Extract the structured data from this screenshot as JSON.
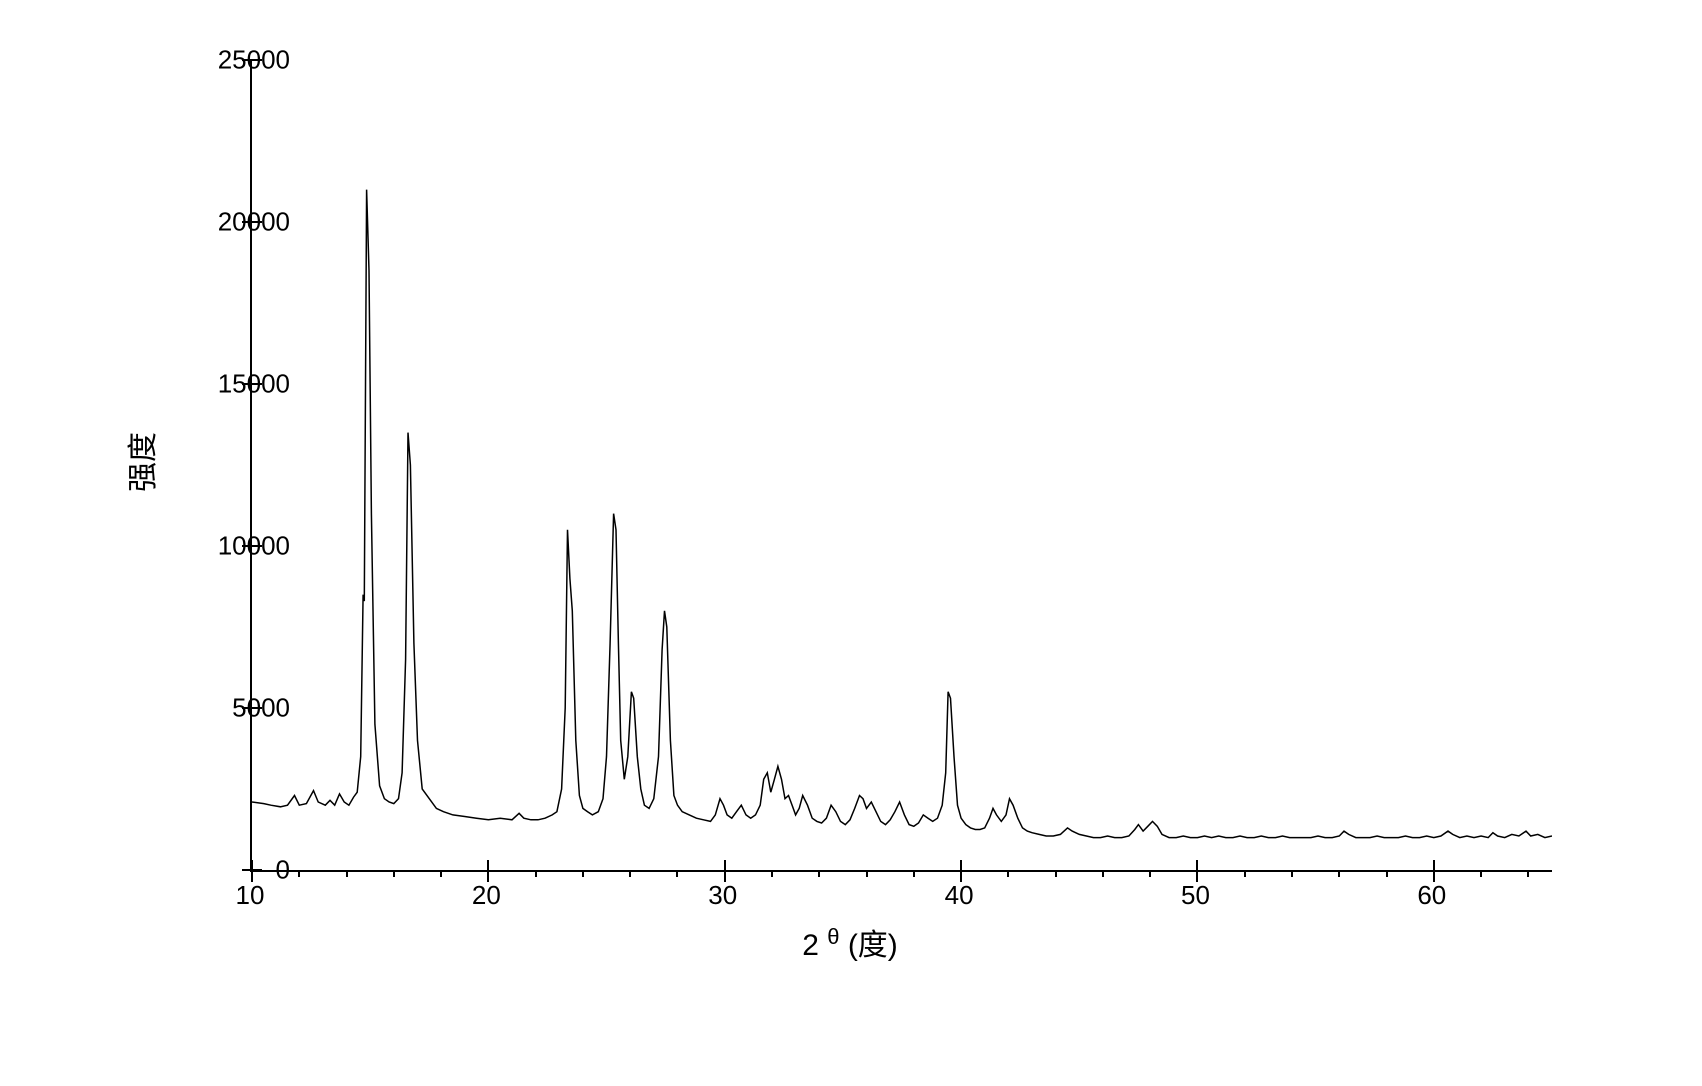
{
  "chart": {
    "type": "line",
    "xlabel_prefix": "2",
    "xlabel_theta": "θ",
    "xlabel_unit": "(度)",
    "ylabel": "强度",
    "xlim": [
      10,
      65
    ],
    "ylim": [
      0,
      25000
    ],
    "xtick_step": 10,
    "xtick_minor_step": 2,
    "ytick_step": 5000,
    "ytick_labels": [
      "0",
      "5000",
      "10000",
      "15000",
      "20000",
      "25000"
    ],
    "xtick_labels": [
      "10",
      "20",
      "30",
      "40",
      "50",
      "60"
    ],
    "line_color": "#000000",
    "line_width": 1.5,
    "background_color": "#ffffff",
    "axis_color": "#000000",
    "font_size_ticks": 26,
    "font_size_labels": 30,
    "data": [
      [
        10.0,
        2100
      ],
      [
        10.5,
        2050
      ],
      [
        10.8,
        2000
      ],
      [
        11.2,
        1950
      ],
      [
        11.5,
        2000
      ],
      [
        11.8,
        2300
      ],
      [
        12.0,
        2000
      ],
      [
        12.3,
        2050
      ],
      [
        12.6,
        2450
      ],
      [
        12.8,
        2100
      ],
      [
        13.1,
        2000
      ],
      [
        13.3,
        2150
      ],
      [
        13.5,
        2000
      ],
      [
        13.7,
        2350
      ],
      [
        13.9,
        2100
      ],
      [
        14.1,
        2000
      ],
      [
        14.3,
        2250
      ],
      [
        14.45,
        2400
      ],
      [
        14.6,
        3500
      ],
      [
        14.7,
        8500
      ],
      [
        14.75,
        8300
      ],
      [
        14.85,
        21000
      ],
      [
        14.95,
        18500
      ],
      [
        15.05,
        11000
      ],
      [
        15.2,
        4500
      ],
      [
        15.4,
        2600
      ],
      [
        15.6,
        2200
      ],
      [
        15.8,
        2100
      ],
      [
        16.0,
        2050
      ],
      [
        16.2,
        2200
      ],
      [
        16.35,
        3000
      ],
      [
        16.5,
        6500
      ],
      [
        16.6,
        13500
      ],
      [
        16.7,
        12500
      ],
      [
        16.85,
        7000
      ],
      [
        17.0,
        4000
      ],
      [
        17.2,
        2500
      ],
      [
        17.5,
        2200
      ],
      [
        17.8,
        1900
      ],
      [
        18.1,
        1800
      ],
      [
        18.5,
        1700
      ],
      [
        19.0,
        1650
      ],
      [
        19.5,
        1600
      ],
      [
        20.0,
        1550
      ],
      [
        20.5,
        1600
      ],
      [
        21.0,
        1550
      ],
      [
        21.3,
        1750
      ],
      [
        21.5,
        1600
      ],
      [
        21.8,
        1550
      ],
      [
        22.1,
        1550
      ],
      [
        22.4,
        1600
      ],
      [
        22.7,
        1700
      ],
      [
        22.9,
        1800
      ],
      [
        23.1,
        2500
      ],
      [
        23.25,
        5000
      ],
      [
        23.35,
        10500
      ],
      [
        23.45,
        9000
      ],
      [
        23.55,
        8000
      ],
      [
        23.7,
        4000
      ],
      [
        23.85,
        2300
      ],
      [
        24.0,
        1900
      ],
      [
        24.2,
        1800
      ],
      [
        24.4,
        1700
      ],
      [
        24.65,
        1800
      ],
      [
        24.85,
        2200
      ],
      [
        25.0,
        3500
      ],
      [
        25.15,
        7000
      ],
      [
        25.3,
        11000
      ],
      [
        25.4,
        10500
      ],
      [
        25.5,
        7000
      ],
      [
        25.6,
        4000
      ],
      [
        25.75,
        2800
      ],
      [
        25.9,
        3500
      ],
      [
        26.05,
        5500
      ],
      [
        26.15,
        5300
      ],
      [
        26.3,
        3500
      ],
      [
        26.45,
        2500
      ],
      [
        26.6,
        2000
      ],
      [
        26.8,
        1900
      ],
      [
        27.0,
        2200
      ],
      [
        27.2,
        3500
      ],
      [
        27.35,
        6800
      ],
      [
        27.45,
        8000
      ],
      [
        27.55,
        7500
      ],
      [
        27.7,
        4000
      ],
      [
        27.85,
        2300
      ],
      [
        28.0,
        2000
      ],
      [
        28.2,
        1800
      ],
      [
        28.5,
        1700
      ],
      [
        28.8,
        1600
      ],
      [
        29.1,
        1550
      ],
      [
        29.4,
        1500
      ],
      [
        29.6,
        1700
      ],
      [
        29.8,
        2200
      ],
      [
        29.95,
        2000
      ],
      [
        30.1,
        1700
      ],
      [
        30.3,
        1600
      ],
      [
        30.5,
        1800
      ],
      [
        30.7,
        2000
      ],
      [
        30.9,
        1700
      ],
      [
        31.1,
        1600
      ],
      [
        31.3,
        1700
      ],
      [
        31.5,
        2000
      ],
      [
        31.65,
        2800
      ],
      [
        31.8,
        3000
      ],
      [
        31.95,
        2400
      ],
      [
        32.1,
        2800
      ],
      [
        32.25,
        3200
      ],
      [
        32.4,
        2800
      ],
      [
        32.55,
        2200
      ],
      [
        32.7,
        2300
      ],
      [
        32.85,
        2000
      ],
      [
        33.0,
        1700
      ],
      [
        33.15,
        1900
      ],
      [
        33.3,
        2300
      ],
      [
        33.5,
        2000
      ],
      [
        33.7,
        1600
      ],
      [
        33.9,
        1500
      ],
      [
        34.1,
        1450
      ],
      [
        34.3,
        1600
      ],
      [
        34.5,
        2000
      ],
      [
        34.7,
        1800
      ],
      [
        34.9,
        1500
      ],
      [
        35.1,
        1400
      ],
      [
        35.3,
        1550
      ],
      [
        35.5,
        1900
      ],
      [
        35.7,
        2300
      ],
      [
        35.85,
        2200
      ],
      [
        36.0,
        1900
      ],
      [
        36.2,
        2100
      ],
      [
        36.4,
        1800
      ],
      [
        36.6,
        1500
      ],
      [
        36.8,
        1400
      ],
      [
        37.0,
        1550
      ],
      [
        37.2,
        1800
      ],
      [
        37.4,
        2100
      ],
      [
        37.6,
        1700
      ],
      [
        37.8,
        1400
      ],
      [
        38.0,
        1350
      ],
      [
        38.2,
        1450
      ],
      [
        38.4,
        1700
      ],
      [
        38.6,
        1600
      ],
      [
        38.8,
        1500
      ],
      [
        39.0,
        1600
      ],
      [
        39.2,
        2000
      ],
      [
        39.35,
        3000
      ],
      [
        39.45,
        5500
      ],
      [
        39.55,
        5300
      ],
      [
        39.7,
        3500
      ],
      [
        39.85,
        2000
      ],
      [
        40.0,
        1600
      ],
      [
        40.2,
        1400
      ],
      [
        40.4,
        1300
      ],
      [
        40.6,
        1250
      ],
      [
        40.8,
        1250
      ],
      [
        41.0,
        1300
      ],
      [
        41.2,
        1600
      ],
      [
        41.35,
        1900
      ],
      [
        41.5,
        1700
      ],
      [
        41.7,
        1500
      ],
      [
        41.9,
        1700
      ],
      [
        42.05,
        2200
      ],
      [
        42.2,
        2000
      ],
      [
        42.4,
        1600
      ],
      [
        42.6,
        1300
      ],
      [
        42.8,
        1200
      ],
      [
        43.0,
        1150
      ],
      [
        43.3,
        1100
      ],
      [
        43.6,
        1050
      ],
      [
        43.9,
        1050
      ],
      [
        44.2,
        1100
      ],
      [
        44.5,
        1300
      ],
      [
        44.7,
        1200
      ],
      [
        45.0,
        1100
      ],
      [
        45.3,
        1050
      ],
      [
        45.6,
        1000
      ],
      [
        45.9,
        1000
      ],
      [
        46.2,
        1050
      ],
      [
        46.5,
        1000
      ],
      [
        46.8,
        1000
      ],
      [
        47.1,
        1050
      ],
      [
        47.35,
        1250
      ],
      [
        47.5,
        1400
      ],
      [
        47.7,
        1200
      ],
      [
        47.9,
        1350
      ],
      [
        48.1,
        1500
      ],
      [
        48.3,
        1350
      ],
      [
        48.5,
        1100
      ],
      [
        48.8,
        1000
      ],
      [
        49.1,
        1000
      ],
      [
        49.4,
        1050
      ],
      [
        49.7,
        1000
      ],
      [
        50.0,
        1000
      ],
      [
        50.3,
        1050
      ],
      [
        50.6,
        1000
      ],
      [
        50.9,
        1050
      ],
      [
        51.2,
        1000
      ],
      [
        51.5,
        1000
      ],
      [
        51.8,
        1050
      ],
      [
        52.1,
        1000
      ],
      [
        52.4,
        1000
      ],
      [
        52.7,
        1050
      ],
      [
        53.0,
        1000
      ],
      [
        53.3,
        1000
      ],
      [
        53.6,
        1050
      ],
      [
        53.9,
        1000
      ],
      [
        54.2,
        1000
      ],
      [
        54.5,
        1000
      ],
      [
        54.8,
        1000
      ],
      [
        55.1,
        1050
      ],
      [
        55.4,
        1000
      ],
      [
        55.7,
        1000
      ],
      [
        56.0,
        1050
      ],
      [
        56.2,
        1200
      ],
      [
        56.4,
        1100
      ],
      [
        56.7,
        1000
      ],
      [
        57.0,
        1000
      ],
      [
        57.3,
        1000
      ],
      [
        57.6,
        1050
      ],
      [
        57.9,
        1000
      ],
      [
        58.2,
        1000
      ],
      [
        58.5,
        1000
      ],
      [
        58.8,
        1050
      ],
      [
        59.1,
        1000
      ],
      [
        59.4,
        1000
      ],
      [
        59.7,
        1050
      ],
      [
        60.0,
        1000
      ],
      [
        60.3,
        1050
      ],
      [
        60.6,
        1200
      ],
      [
        60.8,
        1100
      ],
      [
        61.1,
        1000
      ],
      [
        61.4,
        1050
      ],
      [
        61.7,
        1000
      ],
      [
        62.0,
        1050
      ],
      [
        62.3,
        1000
      ],
      [
        62.5,
        1150
      ],
      [
        62.7,
        1050
      ],
      [
        63.0,
        1000
      ],
      [
        63.3,
        1100
      ],
      [
        63.6,
        1050
      ],
      [
        63.9,
        1200
      ],
      [
        64.1,
        1050
      ],
      [
        64.4,
        1100
      ],
      [
        64.7,
        1000
      ],
      [
        65.0,
        1050
      ]
    ]
  }
}
